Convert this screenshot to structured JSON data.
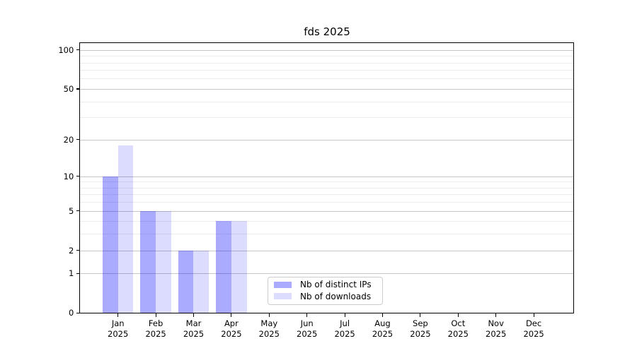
{
  "chart_data": {
    "type": "bar",
    "title": "fds 2025",
    "xlabel": "",
    "ylabel": "",
    "year": "2025",
    "categories": [
      "Jan",
      "Feb",
      "Mar",
      "Apr",
      "May",
      "Jun",
      "Jul",
      "Aug",
      "Sep",
      "Oct",
      "Nov",
      "Dec"
    ],
    "series": [
      {
        "name": "Nb of distinct IPs",
        "color": "#a9a9ff",
        "fill": "rgba(0,0,255,0.335)",
        "values": [
          10,
          5,
          2,
          4,
          0,
          0,
          0,
          0,
          0,
          0,
          0,
          0
        ]
      },
      {
        "name": "Nb of downloads",
        "color": "#dcdcff",
        "fill": "rgba(0,0,255,0.137)",
        "values": [
          18,
          5,
          2,
          4,
          0,
          0,
          0,
          0,
          0,
          0,
          0,
          0
        ]
      }
    ],
    "y_axis": {
      "scale": "log1p",
      "ylim": [
        0,
        112
      ],
      "major_ticks": [
        0,
        1,
        2,
        5,
        10,
        20,
        50,
        100
      ],
      "minor_ticks": [
        3,
        4,
        6,
        7,
        8,
        9,
        30,
        40,
        60,
        70,
        80,
        90
      ]
    },
    "grid": {
      "major_color": "#c6c6c6",
      "minor_color": "#ececec"
    },
    "legend": {
      "position": "lower center",
      "border_color": "#cccccc"
    }
  }
}
